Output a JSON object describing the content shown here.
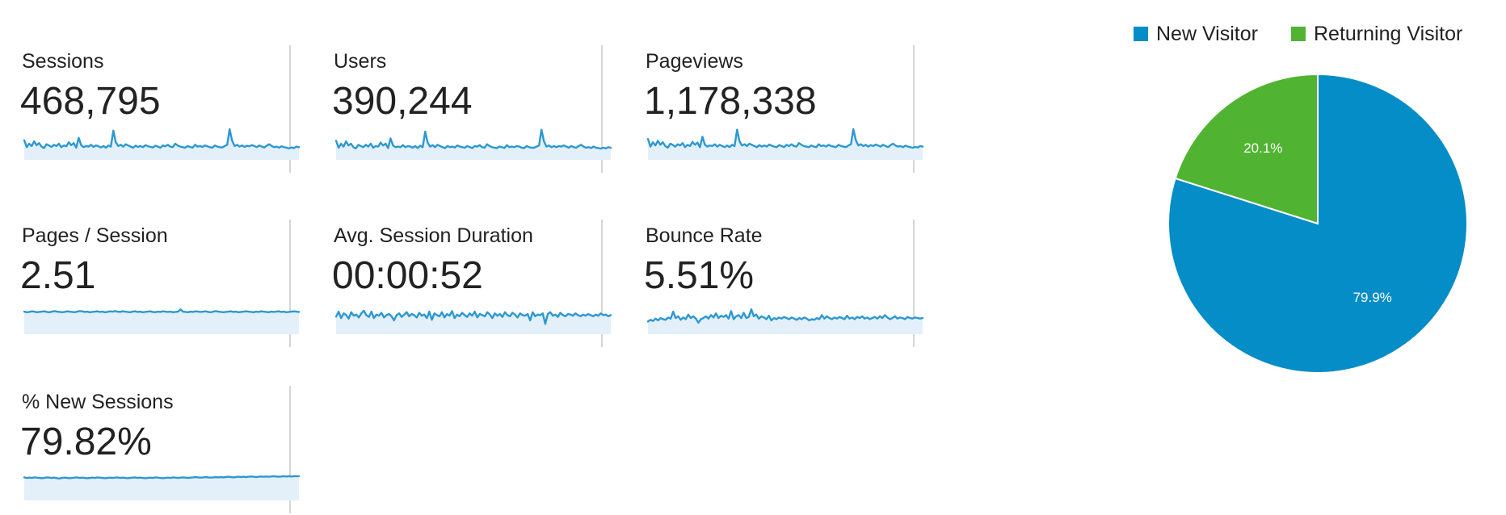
{
  "metrics": [
    {
      "label": "Sessions",
      "value": "468,795",
      "trend": [
        0.62,
        0.38,
        0.5,
        0.42,
        0.58,
        0.45,
        0.52,
        0.4,
        0.35,
        0.48,
        0.44,
        0.39,
        0.46,
        0.42,
        0.5,
        0.38,
        0.44,
        0.41,
        0.55,
        0.45,
        0.52,
        0.36,
        0.7,
        0.45,
        0.38,
        0.42,
        0.4,
        0.46,
        0.39,
        0.44,
        0.41,
        0.37,
        0.42,
        0.36,
        0.44,
        0.4,
        0.95,
        0.55,
        0.42,
        0.46,
        0.4,
        0.48,
        0.44,
        0.4,
        0.36,
        0.43,
        0.39,
        0.42,
        0.38,
        0.45,
        0.41,
        0.39,
        0.37,
        0.43,
        0.4,
        0.36,
        0.44,
        0.41,
        0.46,
        0.4,
        0.38,
        0.5,
        0.44,
        0.4,
        0.38,
        0.36,
        0.42,
        0.39,
        0.36,
        0.46,
        0.4,
        0.42,
        0.39,
        0.44,
        0.41,
        0.38,
        0.36,
        0.44,
        0.4,
        0.38,
        0.37,
        0.42,
        0.46,
        1.0,
        0.6,
        0.42,
        0.46,
        0.4,
        0.44,
        0.39,
        0.43,
        0.41,
        0.45,
        0.42,
        0.38,
        0.44,
        0.4,
        0.37,
        0.43,
        0.48,
        0.42,
        0.38,
        0.4,
        0.36,
        0.41,
        0.38,
        0.36,
        0.34,
        0.37,
        0.35,
        0.4,
        0.38
      ]
    },
    {
      "label": "Users",
      "value": "390,244",
      "trend": [
        0.6,
        0.36,
        0.5,
        0.4,
        0.58,
        0.44,
        0.5,
        0.38,
        0.34,
        0.46,
        0.42,
        0.38,
        0.46,
        0.4,
        0.5,
        0.36,
        0.42,
        0.4,
        0.54,
        0.44,
        0.5,
        0.35,
        0.68,
        0.44,
        0.38,
        0.4,
        0.38,
        0.45,
        0.38,
        0.42,
        0.4,
        0.36,
        0.42,
        0.35,
        0.43,
        0.38,
        0.92,
        0.54,
        0.4,
        0.45,
        0.38,
        0.46,
        0.42,
        0.38,
        0.35,
        0.42,
        0.38,
        0.4,
        0.37,
        0.44,
        0.4,
        0.38,
        0.36,
        0.42,
        0.38,
        0.35,
        0.42,
        0.4,
        0.45,
        0.38,
        0.36,
        0.48,
        0.42,
        0.38,
        0.36,
        0.35,
        0.4,
        0.38,
        0.35,
        0.45,
        0.38,
        0.4,
        0.38,
        0.42,
        0.4,
        0.36,
        0.35,
        0.42,
        0.38,
        0.36,
        0.36,
        0.4,
        0.44,
        0.98,
        0.58,
        0.4,
        0.44,
        0.38,
        0.42,
        0.38,
        0.42,
        0.4,
        0.44,
        0.4,
        0.36,
        0.42,
        0.38,
        0.36,
        0.42,
        0.46,
        0.4,
        0.36,
        0.38,
        0.35,
        0.4,
        0.36,
        0.35,
        0.33,
        0.36,
        0.34,
        0.38,
        0.36
      ]
    },
    {
      "label": "Pageviews",
      "value": "1,178,338",
      "trend": [
        0.66,
        0.4,
        0.55,
        0.44,
        0.6,
        0.46,
        0.55,
        0.42,
        0.36,
        0.5,
        0.46,
        0.4,
        0.48,
        0.44,
        0.52,
        0.38,
        0.46,
        0.42,
        0.56,
        0.46,
        0.54,
        0.38,
        0.74,
        0.46,
        0.4,
        0.44,
        0.42,
        0.48,
        0.4,
        0.46,
        0.42,
        0.38,
        0.44,
        0.38,
        0.46,
        0.42,
        0.98,
        0.58,
        0.44,
        0.48,
        0.42,
        0.5,
        0.46,
        0.42,
        0.38,
        0.45,
        0.4,
        0.44,
        0.4,
        0.47,
        0.43,
        0.4,
        0.38,
        0.45,
        0.42,
        0.38,
        0.46,
        0.42,
        0.48,
        0.42,
        0.4,
        0.52,
        0.46,
        0.42,
        0.4,
        0.38,
        0.44,
        0.4,
        0.38,
        0.48,
        0.42,
        0.44,
        0.4,
        0.46,
        0.42,
        0.4,
        0.38,
        0.46,
        0.42,
        0.4,
        0.38,
        0.44,
        0.48,
        1.0,
        0.62,
        0.44,
        0.48,
        0.42,
        0.46,
        0.4,
        0.45,
        0.42,
        0.47,
        0.44,
        0.4,
        0.46,
        0.42,
        0.38,
        0.45,
        0.5,
        0.44,
        0.4,
        0.42,
        0.38,
        0.43,
        0.4,
        0.38,
        0.36,
        0.39,
        0.37,
        0.42,
        0.4
      ]
    },
    {
      "label": "Pages / Session",
      "value": "2.51",
      "trend": [
        0.72,
        0.7,
        0.71,
        0.73,
        0.72,
        0.7,
        0.71,
        0.72,
        0.73,
        0.71,
        0.7,
        0.72,
        0.74,
        0.72,
        0.71,
        0.7,
        0.71,
        0.73,
        0.72,
        0.71,
        0.7,
        0.72,
        0.74,
        0.73,
        0.71,
        0.72,
        0.7,
        0.71,
        0.72,
        0.73,
        0.71,
        0.72,
        0.7,
        0.71,
        0.73,
        0.72,
        0.74,
        0.72,
        0.71,
        0.73,
        0.72,
        0.71,
        0.7,
        0.72,
        0.73,
        0.71,
        0.72,
        0.7,
        0.71,
        0.72,
        0.73,
        0.71,
        0.7,
        0.72,
        0.71,
        0.73,
        0.72,
        0.71,
        0.72,
        0.7,
        0.71,
        0.72,
        0.8,
        0.72,
        0.71,
        0.7,
        0.72,
        0.71,
        0.73,
        0.72,
        0.71,
        0.72,
        0.73,
        0.71,
        0.7,
        0.72,
        0.74,
        0.72,
        0.71,
        0.7,
        0.71,
        0.72,
        0.73,
        0.71,
        0.72,
        0.7,
        0.71,
        0.72,
        0.73,
        0.72,
        0.71,
        0.7,
        0.72,
        0.71,
        0.73,
        0.72,
        0.71,
        0.7,
        0.72,
        0.71,
        0.72,
        0.73,
        0.71,
        0.72,
        0.7,
        0.71,
        0.72,
        0.73,
        0.72,
        0.71
      ]
    },
    {
      "label": "Avg. Session Duration",
      "value": "00:00:52",
      "trend": [
        0.55,
        0.72,
        0.5,
        0.66,
        0.6,
        0.48,
        0.7,
        0.58,
        0.62,
        0.52,
        0.66,
        0.75,
        0.6,
        0.54,
        0.72,
        0.5,
        0.62,
        0.58,
        0.68,
        0.52,
        0.6,
        0.64,
        0.56,
        0.42,
        0.6,
        0.66,
        0.54,
        0.62,
        0.7,
        0.56,
        0.64,
        0.6,
        0.52,
        0.68,
        0.58,
        0.62,
        0.5,
        0.72,
        0.44,
        0.66,
        0.6,
        0.56,
        0.7,
        0.52,
        0.64,
        0.58,
        0.74,
        0.5,
        0.62,
        0.56,
        0.68,
        0.6,
        0.54,
        0.66,
        0.58,
        0.72,
        0.52,
        0.64,
        0.6,
        0.56,
        0.7,
        0.62,
        0.5,
        0.66,
        0.58,
        0.64,
        0.54,
        0.7,
        0.6,
        0.56,
        0.68,
        0.62,
        0.52,
        0.66,
        0.6,
        0.58,
        0.64,
        0.42,
        0.7,
        0.56,
        0.62,
        0.6,
        0.66,
        0.3,
        0.64,
        0.7,
        0.58,
        0.62,
        0.54,
        0.68,
        0.6,
        0.56,
        0.64,
        0.62,
        0.58,
        0.66,
        0.6,
        0.56,
        0.62,
        0.58,
        0.64,
        0.6,
        0.56,
        0.62,
        0.58,
        0.66,
        0.6,
        0.62,
        0.56,
        0.6
      ]
    },
    {
      "label": "Bounce Rate",
      "value": "5.51%",
      "trend": [
        0.38,
        0.44,
        0.4,
        0.48,
        0.42,
        0.5,
        0.46,
        0.44,
        0.52,
        0.48,
        0.72,
        0.5,
        0.56,
        0.44,
        0.52,
        0.46,
        0.62,
        0.5,
        0.56,
        0.48,
        0.34,
        0.46,
        0.5,
        0.56,
        0.48,
        0.6,
        0.52,
        0.66,
        0.5,
        0.58,
        0.54,
        0.6,
        0.48,
        0.74,
        0.46,
        0.56,
        0.6,
        0.5,
        0.68,
        0.5,
        0.54,
        0.8,
        0.56,
        0.62,
        0.48,
        0.56,
        0.52,
        0.46,
        0.58,
        0.42,
        0.5,
        0.46,
        0.52,
        0.48,
        0.54,
        0.5,
        0.46,
        0.52,
        0.48,
        0.44,
        0.5,
        0.46,
        0.52,
        0.48,
        0.42,
        0.46,
        0.44,
        0.5,
        0.46,
        0.6,
        0.48,
        0.56,
        0.5,
        0.46,
        0.52,
        0.48,
        0.54,
        0.5,
        0.46,
        0.58,
        0.48,
        0.52,
        0.46,
        0.54,
        0.5,
        0.56,
        0.48,
        0.52,
        0.46,
        0.5,
        0.54,
        0.48,
        0.56,
        0.5,
        0.6,
        0.52,
        0.46,
        0.5,
        0.56,
        0.48,
        0.52,
        0.5,
        0.46,
        0.54,
        0.5,
        0.48,
        0.52,
        0.5,
        0.48,
        0.5
      ]
    },
    {
      "label": "% New Sessions",
      "value": "79.82%",
      "trend": [
        0.74,
        0.72,
        0.73,
        0.72,
        0.74,
        0.73,
        0.72,
        0.71,
        0.72,
        0.74,
        0.73,
        0.72,
        0.73,
        0.71,
        0.7,
        0.72,
        0.73,
        0.72,
        0.71,
        0.72,
        0.73,
        0.74,
        0.72,
        0.73,
        0.72,
        0.71,
        0.72,
        0.73,
        0.72,
        0.74,
        0.73,
        0.72,
        0.71,
        0.72,
        0.73,
        0.72,
        0.73,
        0.74,
        0.72,
        0.73,
        0.72,
        0.71,
        0.72,
        0.73,
        0.74,
        0.72,
        0.73,
        0.72,
        0.71,
        0.72,
        0.73,
        0.72,
        0.74,
        0.73,
        0.72,
        0.71,
        0.72,
        0.73,
        0.72,
        0.74,
        0.73,
        0.72,
        0.73,
        0.74,
        0.73,
        0.72,
        0.73,
        0.74,
        0.75,
        0.74,
        0.73,
        0.74,
        0.75,
        0.74,
        0.73,
        0.74,
        0.75,
        0.74,
        0.75,
        0.74,
        0.75,
        0.76,
        0.75,
        0.74,
        0.75,
        0.76,
        0.75,
        0.76,
        0.75,
        0.76,
        0.77,
        0.76,
        0.75,
        0.76,
        0.77,
        0.76,
        0.77,
        0.76,
        0.77,
        0.78,
        0.77,
        0.76,
        0.77,
        0.78,
        0.77,
        0.78,
        0.77,
        0.78,
        0.78,
        0.78
      ]
    }
  ],
  "chart_data": {
    "type": "pie",
    "slices": [
      {
        "name": "New Visitor",
        "value": 79.9,
        "label": "79.9%",
        "color": "#058dc7"
      },
      {
        "name": "Returning Visitor",
        "value": 20.1,
        "label": "20.1%",
        "color": "#50b432"
      }
    ],
    "legend_position": "top",
    "start_angle_deg": 0,
    "direction": "clockwise"
  },
  "colors": {
    "sparkline_line": "#2d98d1",
    "sparkline_fill": "#e3f0fa",
    "divider": "#d6d6d6"
  }
}
